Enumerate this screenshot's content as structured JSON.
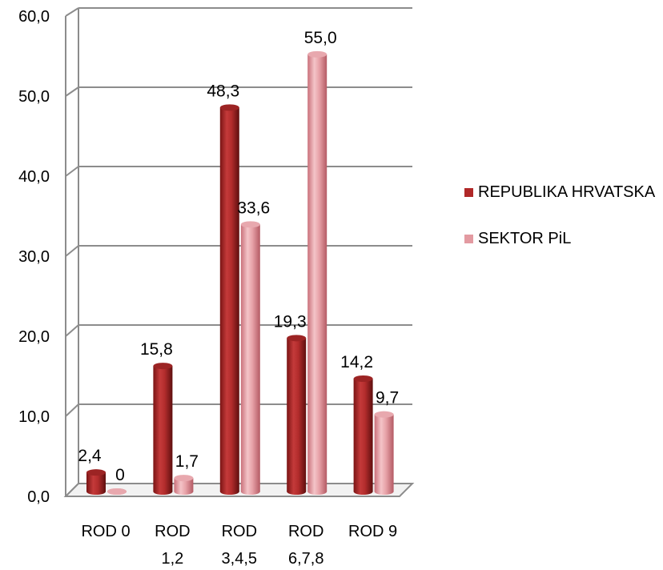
{
  "chart_data": {
    "type": "bar",
    "categories": [
      [
        "ROD 0"
      ],
      [
        "ROD",
        "1,2"
      ],
      [
        "ROD",
        "3,4,5"
      ],
      [
        "ROD",
        "6,7,8"
      ],
      [
        "ROD 9"
      ]
    ],
    "series": [
      {
        "name": "REPUBLIKA HRVATSKA",
        "values": [
          2.4,
          15.8,
          48.3,
          19.3,
          14.2
        ],
        "labels": [
          "2,4",
          "15,8",
          "48,3",
          "19,3",
          "14,2"
        ],
        "color": "#b02828"
      },
      {
        "name": "SEKTOR PiL",
        "values": [
          0,
          1.7,
          33.6,
          55.0,
          9.7
        ],
        "labels": [
          "0",
          "1,7",
          "33,6",
          "55,0",
          "9,7"
        ],
        "color": "#e8a0a6"
      }
    ],
    "ylim": [
      0,
      60
    ],
    "yticks": [
      "0,0",
      "10,0",
      "20,0",
      "30,0",
      "40,0",
      "50,0",
      "60,0"
    ],
    "grid": true,
    "legend_position": "right",
    "three_d": true
  }
}
